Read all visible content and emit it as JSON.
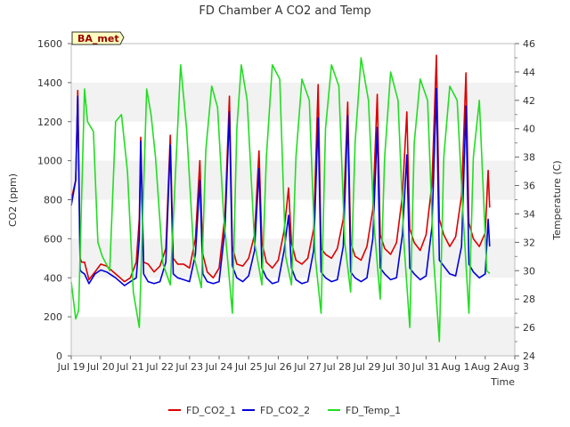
{
  "chart_data": {
    "type": "line",
    "title": "FD Chamber A CO2 and Temp",
    "xlabel": "Time",
    "ylabel_left": "CO2 (ppm)",
    "ylabel_right": "Temperature (C)",
    "annotation": "BA_met",
    "x_range_days": [
      19,
      34
    ],
    "ylim_left": [
      0,
      1600
    ],
    "ylim_right": [
      24,
      46
    ],
    "left_ticks": [
      0,
      200,
      400,
      600,
      800,
      1000,
      1200,
      1400,
      1600
    ],
    "right_ticks": [
      24,
      26,
      28,
      30,
      32,
      34,
      36,
      38,
      40,
      42,
      44,
      46
    ],
    "x_ticks": [
      {
        "day": 19,
        "label": "Jul 19"
      },
      {
        "day": 20,
        "label": "Jul 20"
      },
      {
        "day": 21,
        "label": "Jul 21"
      },
      {
        "day": 22,
        "label": "Jul 22"
      },
      {
        "day": 23,
        "label": "Jul 23"
      },
      {
        "day": 24,
        "label": "Jul 24"
      },
      {
        "day": 25,
        "label": "Jul 25"
      },
      {
        "day": 26,
        "label": "Jul 26"
      },
      {
        "day": 27,
        "label": "Jul 27"
      },
      {
        "day": 28,
        "label": "Jul 28"
      },
      {
        "day": 29,
        "label": "Jul 29"
      },
      {
        "day": 30,
        "label": "Jul 30"
      },
      {
        "day": 31,
        "label": "Jul 31"
      },
      {
        "day": 32,
        "label": "Aug 1"
      },
      {
        "day": 33,
        "label": "Aug 2"
      },
      {
        "day": 34,
        "label": "Aug 3"
      }
    ],
    "grid": "horizontal bands",
    "legend_position": "bottom",
    "series": [
      {
        "name": "FD_CO2_1",
        "color": "#dd0000",
        "axis": "left",
        "x": [
          19.0,
          19.15,
          19.22,
          19.3,
          19.35,
          19.45,
          19.6,
          19.8,
          20.0,
          20.2,
          20.5,
          20.8,
          21.0,
          21.2,
          21.3,
          21.35,
          21.45,
          21.6,
          21.8,
          22.0,
          22.2,
          22.35,
          22.45,
          22.6,
          22.8,
          23.0,
          23.2,
          23.35,
          23.45,
          23.6,
          23.8,
          24.0,
          24.2,
          24.35,
          24.45,
          24.6,
          24.8,
          25.0,
          25.2,
          25.35,
          25.45,
          25.6,
          25.8,
          26.0,
          26.2,
          26.35,
          26.45,
          26.6,
          26.8,
          27.0,
          27.2,
          27.35,
          27.45,
          27.6,
          27.8,
          28.0,
          28.2,
          28.35,
          28.45,
          28.6,
          28.8,
          29.0,
          29.2,
          29.35,
          29.45,
          29.6,
          29.8,
          30.0,
          30.2,
          30.35,
          30.45,
          30.6,
          30.8,
          31.0,
          31.2,
          31.35,
          31.45,
          31.6,
          31.8,
          32.0,
          32.2,
          32.35,
          32.45,
          32.6,
          32.8,
          33.0,
          33.1,
          33.15
        ],
        "y": [
          800,
          900,
          1360,
          500,
          480,
          480,
          390,
          430,
          470,
          460,
          420,
          380,
          400,
          480,
          700,
          1120,
          480,
          470,
          430,
          460,
          550,
          1130,
          500,
          470,
          470,
          450,
          600,
          1000,
          520,
          430,
          400,
          450,
          720,
          1330,
          560,
          470,
          460,
          500,
          620,
          1050,
          580,
          480,
          450,
          490,
          640,
          860,
          580,
          490,
          470,
          500,
          650,
          1390,
          550,
          520,
          500,
          550,
          700,
          1300,
          580,
          510,
          490,
          560,
          750,
          1340,
          620,
          550,
          520,
          580,
          820,
          1250,
          650,
          580,
          540,
          620,
          880,
          1540,
          700,
          620,
          560,
          610,
          820,
          1450,
          680,
          600,
          560,
          630,
          950,
          760
        ]
      },
      {
        "name": "FD_CO2_2",
        "color": "#0000dd",
        "axis": "left",
        "x": [
          19.0,
          19.15,
          19.22,
          19.3,
          19.35,
          19.45,
          19.6,
          19.8,
          20.0,
          20.2,
          20.5,
          20.8,
          21.0,
          21.2,
          21.3,
          21.35,
          21.45,
          21.6,
          21.8,
          22.0,
          22.2,
          22.35,
          22.45,
          22.6,
          22.8,
          23.0,
          23.2,
          23.35,
          23.45,
          23.6,
          23.8,
          24.0,
          24.2,
          24.35,
          24.45,
          24.6,
          24.8,
          25.0,
          25.2,
          25.35,
          25.45,
          25.6,
          25.8,
          26.0,
          26.2,
          26.35,
          26.45,
          26.6,
          26.8,
          27.0,
          27.2,
          27.35,
          27.45,
          27.6,
          27.8,
          28.0,
          28.2,
          28.35,
          28.45,
          28.6,
          28.8,
          29.0,
          29.2,
          29.35,
          29.45,
          29.6,
          29.8,
          30.0,
          30.2,
          30.35,
          30.45,
          30.6,
          30.8,
          31.0,
          31.2,
          31.35,
          31.45,
          31.6,
          31.8,
          32.0,
          32.2,
          32.35,
          32.45,
          32.6,
          32.8,
          33.0,
          33.1,
          33.15
        ],
        "y": [
          770,
          900,
          1330,
          440,
          430,
          420,
          370,
          420,
          440,
          430,
          400,
          360,
          380,
          400,
          600,
          1100,
          420,
          380,
          370,
          380,
          480,
          1080,
          420,
          400,
          390,
          380,
          520,
          900,
          420,
          380,
          370,
          380,
          650,
          1250,
          460,
          400,
          380,
          410,
          540,
          960,
          450,
          400,
          370,
          380,
          540,
          720,
          450,
          390,
          370,
          380,
          540,
          1220,
          430,
          400,
          380,
          390,
          560,
          1230,
          430,
          400,
          380,
          400,
          600,
          1170,
          450,
          420,
          390,
          400,
          620,
          1030,
          450,
          420,
          390,
          410,
          660,
          1370,
          490,
          460,
          420,
          410,
          560,
          1280,
          470,
          430,
          400,
          420,
          700,
          560
        ]
      },
      {
        "name": "FD_Temp_1",
        "color": "#22dd22",
        "axis": "right",
        "x": [
          19.0,
          19.15,
          19.25,
          19.45,
          19.55,
          19.75,
          19.9,
          20.05,
          20.3,
          20.5,
          20.7,
          20.9,
          21.1,
          21.3,
          21.55,
          21.7,
          21.85,
          22.1,
          22.35,
          22.55,
          22.7,
          22.9,
          23.15,
          23.4,
          23.55,
          23.75,
          23.95,
          24.15,
          24.45,
          24.6,
          24.75,
          24.95,
          25.2,
          25.45,
          25.6,
          25.8,
          26.05,
          26.25,
          26.45,
          26.6,
          26.8,
          27.05,
          27.25,
          27.45,
          27.6,
          27.8,
          28.05,
          28.25,
          28.45,
          28.6,
          28.8,
          29.05,
          29.25,
          29.45,
          29.6,
          29.8,
          30.05,
          30.25,
          30.45,
          30.6,
          30.8,
          31.05,
          31.25,
          31.45,
          31.6,
          31.8,
          32.05,
          32.25,
          32.45,
          32.6,
          32.8,
          33.05,
          33.15
        ],
        "y": [
          29.2,
          26.6,
          27.2,
          42.8,
          40.5,
          39.8,
          32.0,
          31.0,
          30.0,
          40.5,
          41.0,
          37.0,
          28.5,
          26.0,
          42.8,
          41.0,
          38.0,
          30.5,
          29.0,
          38.0,
          44.5,
          40.0,
          31.0,
          28.8,
          38.5,
          43.0,
          41.5,
          34.0,
          27.0,
          40.0,
          44.5,
          42.0,
          32.0,
          29.0,
          38.0,
          44.5,
          43.5,
          31.0,
          29.0,
          38.0,
          43.5,
          42.0,
          31.0,
          27.0,
          40.0,
          44.5,
          43.0,
          32.0,
          28.5,
          39.0,
          45.0,
          42.0,
          33.0,
          28.0,
          38.0,
          44.0,
          42.0,
          32.0,
          26.0,
          39.0,
          43.5,
          42.0,
          31.0,
          25.0,
          38.0,
          43.0,
          42.0,
          34.0,
          27.0,
          38.0,
          42.0,
          30.0,
          29.8
        ]
      }
    ]
  }
}
